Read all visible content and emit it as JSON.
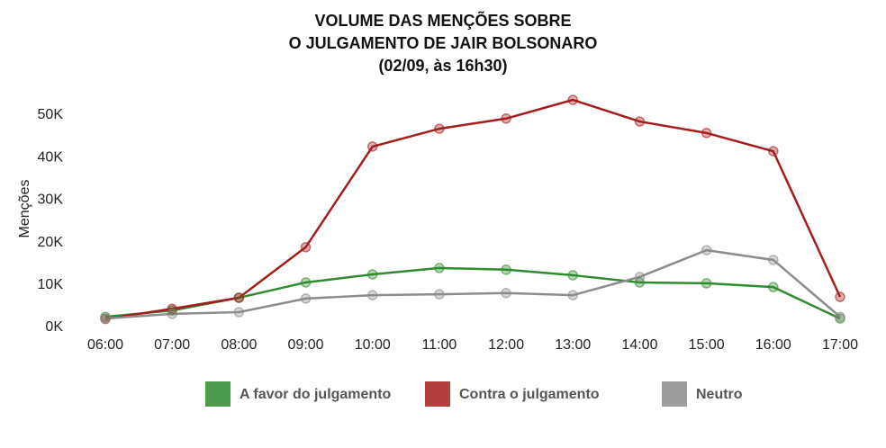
{
  "chart_data": {
    "type": "line",
    "title": [
      "VOLUME DAS MENÇÕES SOBRE",
      "O JULGAMENTO DE JAIR BOLSONARO",
      "(02/09, às 16h30)"
    ],
    "y_label": "Menções",
    "categories": [
      "06:00",
      "07:00",
      "08:00",
      "09:00",
      "10:00",
      "11:00",
      "12:00",
      "13:00",
      "14:00",
      "15:00",
      "16:00",
      "17:00"
    ],
    "series": [
      {
        "name": "A favor do julgamento",
        "color": "#2e8b2e",
        "values": [
          2500,
          4000,
          7000,
          10600,
          12500,
          14000,
          13600,
          12300,
          10600,
          10400,
          9500,
          2100
        ]
      },
      {
        "name": "Contra o julgamento",
        "color": "#a51c1c",
        "values": [
          2000,
          4400,
          7000,
          18900,
          42600,
          46800,
          49200,
          53600,
          48500,
          45800,
          41500,
          7200
        ]
      },
      {
        "name": "Neutro",
        "color": "#8c8c8c",
        "values": [
          2100,
          3200,
          3600,
          6800,
          7600,
          7800,
          8100,
          7600,
          11900,
          18200,
          15900,
          2500
        ]
      }
    ],
    "ylim": [
      0,
      55000
    ],
    "yticks": [
      {
        "value": 0,
        "label": "0K"
      },
      {
        "value": 10000,
        "label": "10K"
      },
      {
        "value": 20000,
        "label": "20K"
      },
      {
        "value": 30000,
        "label": "30K"
      },
      {
        "value": 40000,
        "label": "40K"
      },
      {
        "value": 50000,
        "label": "50K"
      }
    ],
    "grid": false
  }
}
